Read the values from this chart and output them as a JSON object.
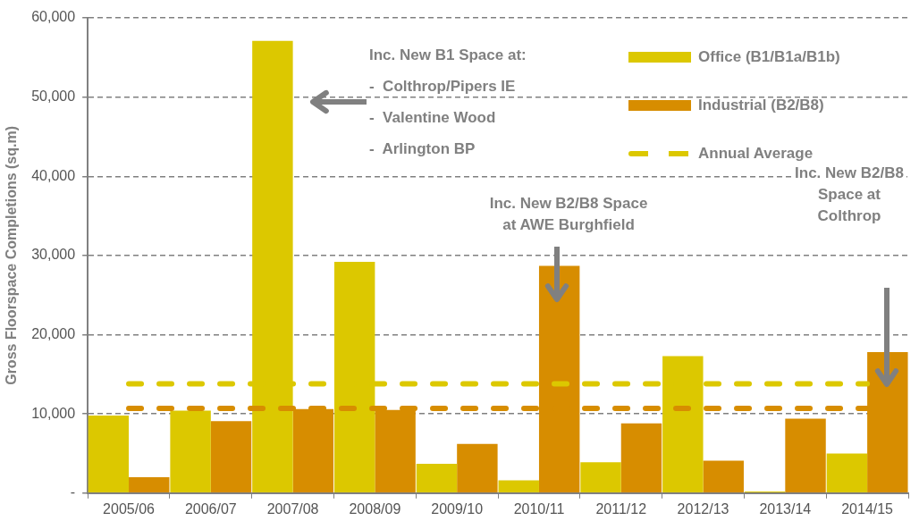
{
  "chart_data": {
    "type": "bar",
    "ylabel": "Gross Floorspace Completions (sq.m)",
    "categories": [
      "2005/06",
      "2006/07",
      "2007/08",
      "2008/09",
      "2009/10",
      "2010/11",
      "2011/12",
      "2012/13",
      "2013/14",
      "2014/15"
    ],
    "series": [
      {
        "name": "Office (B1/B1a/B1b)",
        "color": "#dcc800",
        "values": [
          9800,
          10400,
          57100,
          29200,
          3700,
          1600,
          3900,
          17300,
          200,
          5000
        ]
      },
      {
        "name": "Industrial (B2/B8)",
        "color": "#d78d00",
        "values": [
          2000,
          9100,
          10600,
          10500,
          6200,
          28700,
          8800,
          4100,
          9400,
          17800
        ]
      },
      {
        "name": "Annual Average",
        "type": "line",
        "line_style": "dashed",
        "color": "#dcc800",
        "values": [
          13800,
          13800,
          13800,
          13800,
          13800,
          13800,
          13800,
          13800,
          13800,
          13800
        ]
      },
      {
        "type": "line",
        "line_style": "dashed",
        "color": "#d78d00",
        "values": [
          10700,
          10700,
          10700,
          10700,
          10700,
          10700,
          10700,
          10700,
          10700,
          10700
        ]
      }
    ],
    "ylim": [
      0,
      60000
    ],
    "yticks": [
      {
        "value": 0,
        "label": "-"
      },
      {
        "value": 10000,
        "label": "10,000"
      },
      {
        "value": 20000,
        "label": "20,000"
      },
      {
        "value": 30000,
        "label": "30,000"
      },
      {
        "value": 40000,
        "label": "40,000"
      },
      {
        "value": 50000,
        "label": "50,000"
      },
      {
        "value": 60000,
        "label": "60,000"
      }
    ],
    "grid": "y",
    "legend": "top right",
    "annotations": [
      "Inc. New B1 Space at:\n-  Colthrop/Pipers IE\n-  Valentine Wood\n-  Arlington BP",
      "Inc. New B2/B8 Space\nat AWE Burghfield",
      "Inc. New B2/B8\nSpace at\nColthrop"
    ]
  }
}
